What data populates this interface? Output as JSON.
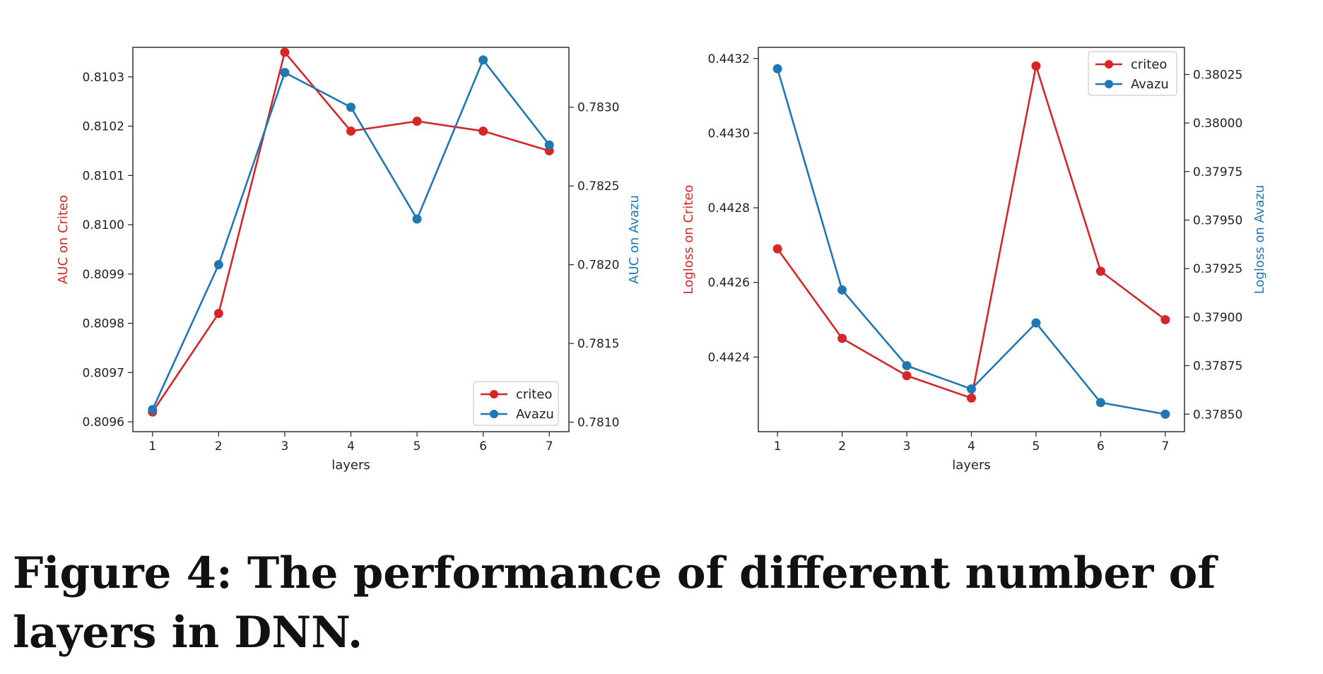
{
  "colors": {
    "criteo": "#d62728",
    "avazu": "#1f77b4",
    "axis": "#222222"
  },
  "chart_data": [
    {
      "type": "line",
      "xlabel": "layers",
      "ylabel_left": "AUC on Criteo",
      "ylabel_right": "AUC on Avazu",
      "x": [
        1,
        2,
        3,
        4,
        5,
        6,
        7
      ],
      "ylim_left": [
        0.80958,
        0.81036
      ],
      "ylim_right": [
        0.78094,
        0.78338
      ],
      "yticks_left": [
        "0.8096",
        "0.8097",
        "0.8098",
        "0.8099",
        "0.8100",
        "0.8101",
        "0.8102",
        "0.8103"
      ],
      "yticks_right": [
        "0.7810",
        "0.7815",
        "0.7820",
        "0.7825",
        "0.7830"
      ],
      "legend_position": "lower-right",
      "series": [
        {
          "name": "criteo",
          "axis": "left",
          "values": [
            0.80962,
            0.80982,
            0.81035,
            0.81019,
            0.81021,
            0.81019,
            0.81015
          ]
        },
        {
          "name": "Avazu",
          "axis": "right",
          "values": [
            0.78108,
            0.782,
            0.78322,
            0.783,
            0.78229,
            0.7833,
            0.78276
          ]
        }
      ]
    },
    {
      "type": "line",
      "xlabel": "layers",
      "ylabel_left": "Logloss on Criteo",
      "ylabel_right": "Logloss on Avazu",
      "x": [
        1,
        2,
        3,
        4,
        5,
        6,
        7
      ],
      "ylim_left": [
        0.4422,
        0.44323
      ],
      "ylim_right": [
        0.37841,
        0.38039
      ],
      "yticks_left": [
        "0.4424",
        "0.4426",
        "0.4428",
        "0.4430",
        "0.4432"
      ],
      "yticks_right": [
        "0.37850",
        "0.37875",
        "0.37900",
        "0.37925",
        "0.37950",
        "0.37975",
        "0.38000",
        "0.38025"
      ],
      "legend_position": "upper-right",
      "series": [
        {
          "name": "criteo",
          "axis": "left",
          "values": [
            0.44269,
            0.44245,
            0.44235,
            0.44229,
            0.44318,
            0.44263,
            0.4425
          ]
        },
        {
          "name": "Avazu",
          "axis": "right",
          "values": [
            0.38028,
            0.37914,
            0.37875,
            0.37863,
            0.37897,
            0.37856,
            0.3785
          ]
        }
      ]
    }
  ],
  "caption": "Figure 4: The performance of different number of layers in DNN."
}
